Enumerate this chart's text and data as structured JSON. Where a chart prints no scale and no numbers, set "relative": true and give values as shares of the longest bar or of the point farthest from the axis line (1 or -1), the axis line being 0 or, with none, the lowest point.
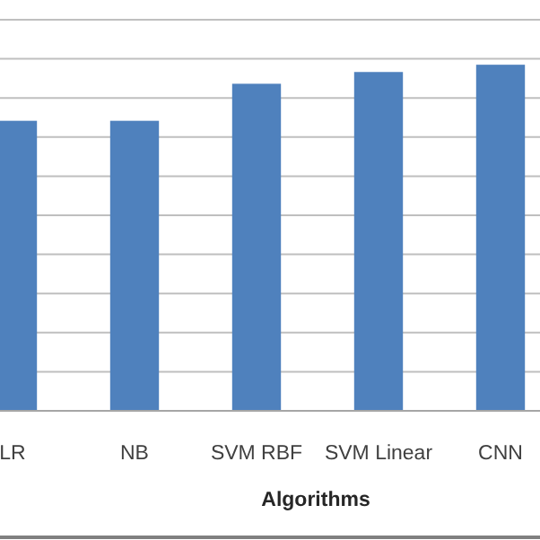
{
  "chart_data": {
    "type": "bar",
    "xlabel": "Algorithms",
    "categories": [
      "LR",
      "NB",
      "SVM RBF",
      "SVM Linear",
      "CNN"
    ],
    "values": [
      0.838,
      0.838,
      0.945,
      0.979,
      1
    ],
    "color": "#4f81bd",
    "relative": true,
    "grid": "y"
  }
}
